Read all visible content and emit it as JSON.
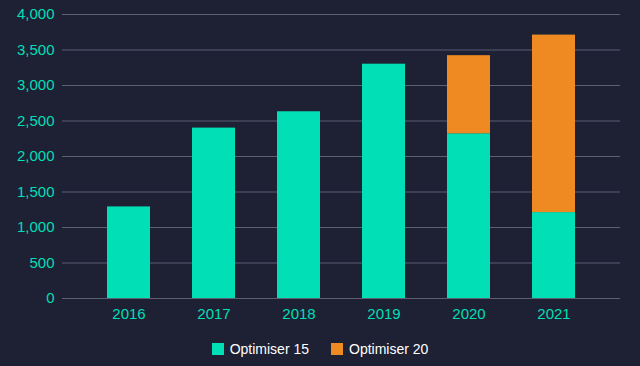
{
  "chart_data": {
    "type": "bar",
    "stacked": true,
    "grid": true,
    "legend": "bottom",
    "categories": [
      "2016",
      "2017",
      "2018",
      "2019",
      "2020",
      "2021"
    ],
    "series": [
      {
        "name": "Optimiser 15",
        "color": "#00dfb6",
        "values": [
          1290,
          2400,
          2630,
          3300,
          2320,
          1210
        ]
      },
      {
        "name": "Optimiser 20",
        "color": "#ef8a22",
        "values": [
          0,
          0,
          0,
          0,
          1100,
          2500
        ]
      }
    ],
    "ylim": [
      0,
      4000
    ],
    "yticks": [
      0,
      500,
      {
        "value": 1000,
        "label": "1,000"
      },
      {
        "value": 1500,
        "label": "1,500"
      },
      {
        "value": 2000,
        "label": "2,000"
      },
      {
        "value": 2500,
        "label": "2,500"
      },
      {
        "value": 3000,
        "label": "3,000"
      },
      {
        "value": 3500,
        "label": "3,500"
      },
      {
        "value": 4000,
        "label": "4,000"
      }
    ]
  }
}
